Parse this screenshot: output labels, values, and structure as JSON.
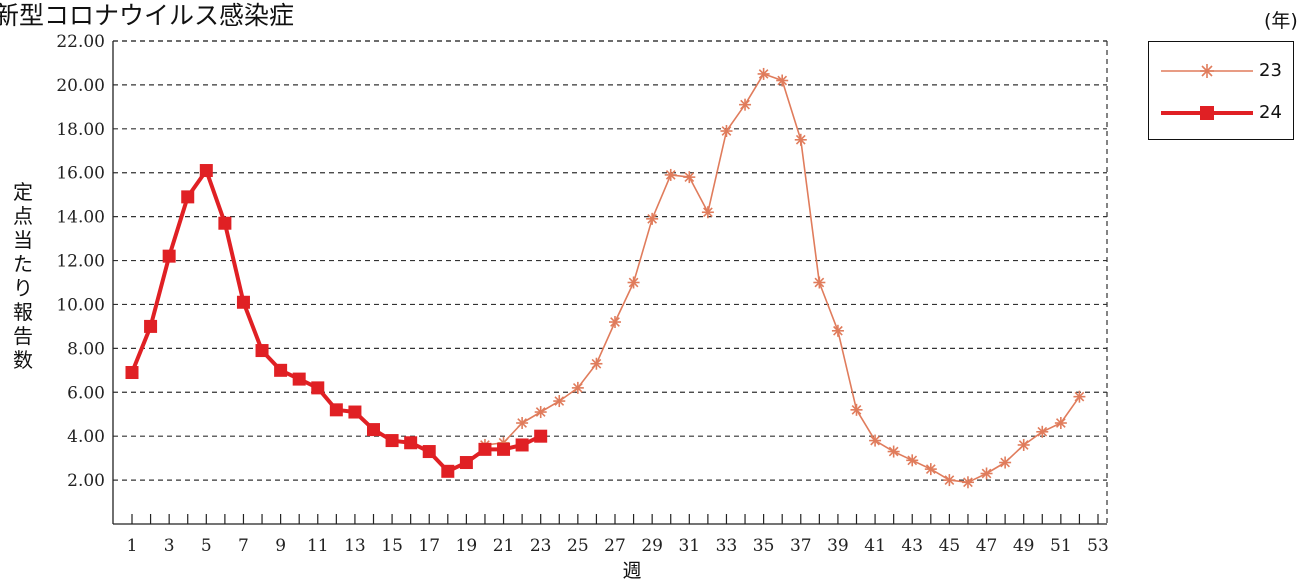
{
  "chart_data": {
    "type": "line",
    "title": "新型コロナウイルス感染症",
    "xlabel": "週",
    "ylabel": "定点当たり報告数",
    "legend_title": "(年)",
    "legend_position": "top-right",
    "grid": true,
    "ylim": [
      0,
      22
    ],
    "yticks": [
      "2.00",
      "4.00",
      "6.00",
      "8.00",
      "10.00",
      "12.00",
      "14.00",
      "16.00",
      "18.00",
      "20.00",
      "22.00"
    ],
    "xlim": [
      1,
      53
    ],
    "xticks": [
      "1",
      "3",
      "5",
      "7",
      "9",
      "11",
      "13",
      "15",
      "17",
      "19",
      "21",
      "23",
      "25",
      "27",
      "29",
      "31",
      "33",
      "35",
      "37",
      "39",
      "41",
      "43",
      "45",
      "47",
      "49",
      "51",
      "53"
    ],
    "series": [
      {
        "name": "23",
        "color": "#e07c5c",
        "marker": "asterisk",
        "x": [
          20,
          21,
          22,
          23,
          24,
          25,
          26,
          27,
          28,
          29,
          30,
          31,
          32,
          33,
          34,
          35,
          36,
          37,
          38,
          39,
          40,
          41,
          42,
          43,
          44,
          45,
          46,
          47,
          48,
          49,
          50,
          51,
          52
        ],
        "values": [
          3.6,
          3.7,
          4.6,
          5.1,
          5.6,
          6.2,
          7.3,
          9.2,
          11.0,
          13.9,
          15.9,
          15.8,
          14.2,
          17.9,
          19.1,
          20.5,
          20.2,
          17.5,
          11.0,
          8.8,
          5.2,
          3.8,
          3.3,
          2.9,
          2.5,
          2.0,
          1.9,
          2.3,
          2.8,
          3.6,
          4.2,
          4.6,
          5.8
        ]
      },
      {
        "name": "24",
        "color": "#e02024",
        "marker": "square",
        "x": [
          1,
          2,
          3,
          4,
          5,
          6,
          7,
          8,
          9,
          10,
          11,
          12,
          13,
          14,
          15,
          16,
          17,
          18,
          19,
          20,
          21,
          22,
          23
        ],
        "values": [
          6.9,
          9.0,
          12.2,
          14.9,
          16.1,
          13.7,
          10.1,
          7.9,
          7.0,
          6.6,
          6.2,
          5.2,
          5.1,
          4.3,
          3.8,
          3.7,
          3.3,
          2.4,
          2.8,
          3.4,
          3.4,
          3.6,
          4.0
        ]
      }
    ]
  },
  "colors": {
    "series_23": "#e07c5c",
    "series_24": "#e02024",
    "grid": "#333333"
  }
}
